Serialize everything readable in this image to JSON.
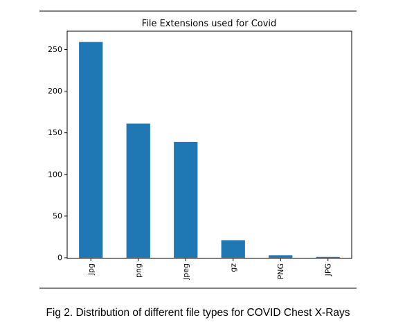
{
  "chart_data": {
    "type": "bar",
    "title": "File Extensions used for Covid",
    "categories": [
      "jpg",
      "png",
      "jpeg",
      "gz",
      "PNG",
      "JPG"
    ],
    "values": [
      259,
      161,
      139,
      21,
      3,
      1
    ],
    "ylim": [
      0,
      272
    ],
    "yticks": [
      0,
      50,
      100,
      150,
      200,
      250
    ],
    "xlabel": "",
    "ylabel": "",
    "grid": false,
    "bar_color": "#1f77b4"
  },
  "caption": "Fig 2. Distribution of different file types for COVID Chest X-Rays"
}
